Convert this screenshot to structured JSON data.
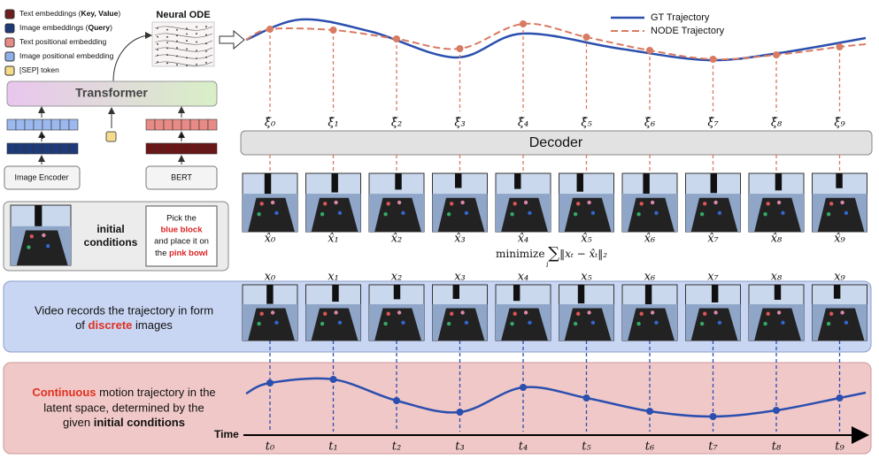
{
  "legend": [
    [
      "Text embeddings (",
      "Key, Value",
      ")"
    ],
    [
      "Image embeddings (",
      "Query",
      ")"
    ],
    [
      "Text positional embedding"
    ],
    [
      "Image positional embedding"
    ],
    [
      "[SEP] token"
    ]
  ],
  "neural_ode": "Neural ODE",
  "transformer": "Transformer",
  "plus": [
    "+",
    "+"
  ],
  "image_encoder": "Image Encoder",
  "bert": "BERT",
  "initial_conditions": [
    "initial",
    "conditions"
  ],
  "instruction": [
    "Pick the",
    "blue block",
    "and place it on",
    "the ",
    "pink bowl"
  ],
  "trajectory_legend": [
    "GT Trajectory",
    "NODE Trajectory"
  ],
  "decoder": "Decoder",
  "columns": [
    {
      "xi_hat": "ξ̂₀",
      "x_hat": "x̂₀",
      "x": "x₀",
      "t": "t₀"
    },
    {
      "xi_hat": "ξ̂₁",
      "x_hat": "x̂₁",
      "x": "x₁",
      "t": "t₁"
    },
    {
      "xi_hat": "ξ̂₂",
      "x_hat": "x̂₂",
      "x": "x₂",
      "t": "t₂"
    },
    {
      "xi_hat": "ξ̂₃",
      "x_hat": "x̂₃",
      "x": "x₃",
      "t": "t₃"
    },
    {
      "xi_hat": "ξ̂₄",
      "x_hat": "x̂₄",
      "x": "x₄",
      "t": "t₄"
    },
    {
      "xi_hat": "ξ̂₅",
      "x_hat": "x̂₅",
      "x": "x₅",
      "t": "t₅"
    },
    {
      "xi_hat": "ξ̂₆",
      "x_hat": "x̂₆",
      "x": "x₆",
      "t": "t₆"
    },
    {
      "xi_hat": "ξ̂₇",
      "x_hat": "x̂₇",
      "x": "x₇",
      "t": "t₇"
    },
    {
      "xi_hat": "ξ̂₈",
      "x_hat": "x̂₈",
      "x": "x₈",
      "t": "t₈"
    },
    {
      "xi_hat": "ξ̂₉",
      "x_hat": "x̂₉",
      "x": "x₉",
      "t": "t₉"
    }
  ],
  "objective": [
    "minimize",
    "∑",
    "i",
    "‖xₜ − x̂ₜ‖₂"
  ],
  "video_text": [
    "Video records the trajectory in form",
    "of ",
    "discrete",
    " images"
  ],
  "latent_text": [
    "Continuous",
    " motion trajectory in the",
    "latent space, determined by the",
    "given ",
    "initial conditions"
  ],
  "time": "Time"
}
